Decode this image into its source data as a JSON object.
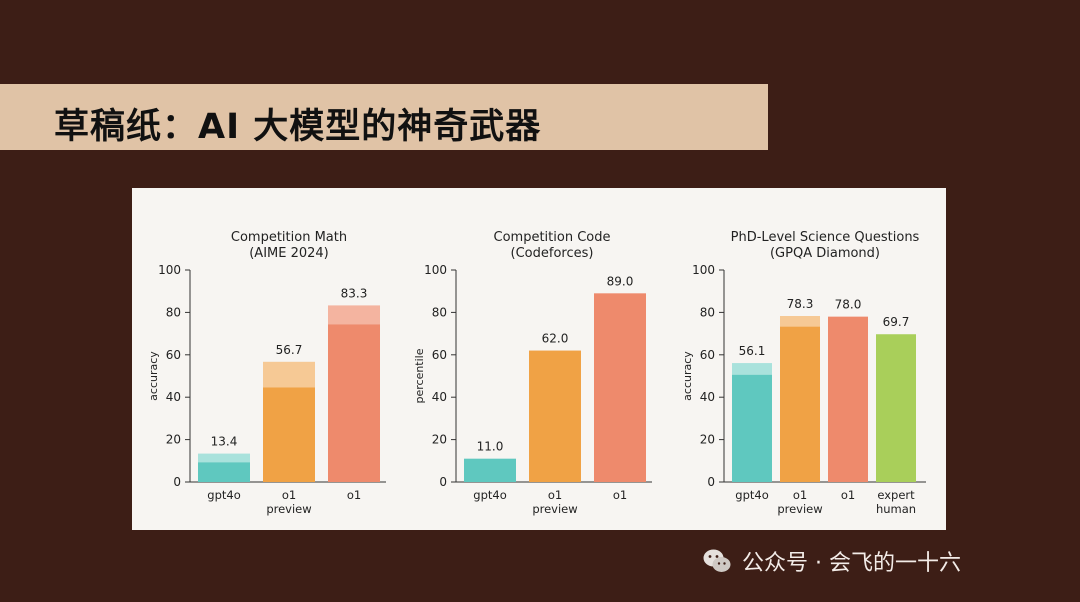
{
  "slide": {
    "title": "草稿纸：AI 大模型的神奇武器"
  },
  "watermark": {
    "text": "公众号 · 会飞的一十六",
    "icon": "wechat-icon"
  },
  "colors": {
    "background": "#3d1e16",
    "title_band": "#e0c3a6",
    "gpt4o": "#5fc8bf",
    "gpt4o_light": "#a9e2dc",
    "o1_preview": "#f0a245",
    "o1_preview_light": "#f6c995",
    "o1": "#ee8a6c",
    "o1_light": "#f4b4a0",
    "expert_human": "#a9cf5a"
  },
  "chart_data": [
    {
      "type": "bar",
      "title": "Competition Math",
      "subtitle": "(AIME 2024)",
      "ylabel": "accuracy",
      "ylim": [
        0,
        100
      ],
      "yticks": [
        "0",
        "20",
        "40",
        "60",
        "80",
        "100"
      ],
      "categories": [
        "gpt4o",
        "o1 preview",
        "o1"
      ],
      "category_lines": [
        [
          "gpt4o"
        ],
        [
          "o1",
          "preview"
        ],
        [
          "o1"
        ]
      ],
      "values": [
        13.4,
        56.7,
        83.3
      ],
      "value_labels": [
        "13.4",
        "56.7",
        "83.3"
      ],
      "base_values": [
        9.3,
        44.6,
        74.4
      ],
      "series_keys": [
        "gpt4o",
        "o1_preview",
        "o1"
      ]
    },
    {
      "type": "bar",
      "title": "Competition Code",
      "subtitle": "(Codeforces)",
      "ylabel": "percentile",
      "ylim": [
        0,
        100
      ],
      "yticks": [
        "0",
        "20",
        "40",
        "60",
        "80",
        "100"
      ],
      "categories": [
        "gpt4o",
        "o1 preview",
        "o1"
      ],
      "category_lines": [
        [
          "gpt4o"
        ],
        [
          "o1",
          "preview"
        ],
        [
          "o1"
        ]
      ],
      "values": [
        11.0,
        62.0,
        89.0
      ],
      "value_labels": [
        "11.0",
        "62.0",
        "89.0"
      ],
      "base_values": [
        11.0,
        62.0,
        89.0
      ],
      "series_keys": [
        "gpt4o",
        "o1_preview",
        "o1"
      ]
    },
    {
      "type": "bar",
      "title": "PhD-Level Science Questions",
      "subtitle": "(GPQA Diamond)",
      "ylabel": "accuracy",
      "ylim": [
        0,
        100
      ],
      "yticks": [
        "0",
        "20",
        "40",
        "60",
        "80",
        "100"
      ],
      "categories": [
        "gpt4o",
        "o1 preview",
        "o1",
        "expert human"
      ],
      "category_lines": [
        [
          "gpt4o"
        ],
        [
          "o1",
          "preview"
        ],
        [
          "o1"
        ],
        [
          "expert",
          "human"
        ]
      ],
      "values": [
        56.1,
        78.3,
        78.0,
        69.7
      ],
      "value_labels": [
        "56.1",
        "78.3",
        "78.0",
        "69.7"
      ],
      "base_values": [
        50.6,
        73.3,
        78.0,
        69.7
      ],
      "series_keys": [
        "gpt4o",
        "o1_preview",
        "o1",
        "expert_human"
      ]
    }
  ]
}
